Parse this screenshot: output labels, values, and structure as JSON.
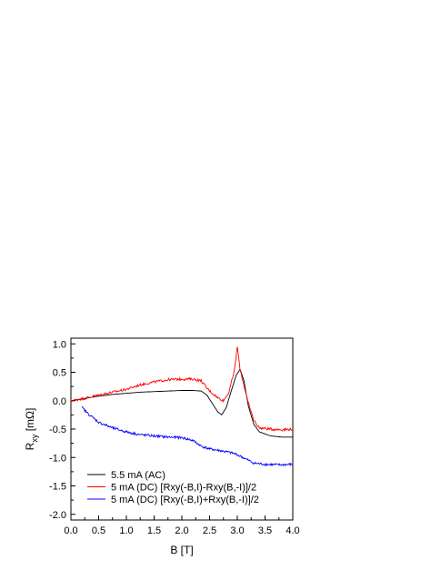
{
  "chart_data": {
    "type": "line",
    "title": "",
    "xlabel": "B [T]",
    "ylabel_main": "R",
    "ylabel_sub": "xy",
    "ylabel_unit": " [mΩ]",
    "xlim": [
      0.0,
      4.0
    ],
    "ylim": [
      -2.1,
      1.1
    ],
    "xticks": [
      "0.0",
      "0.5",
      "1.0",
      "1.5",
      "2.0",
      "2.5",
      "3.0",
      "3.5",
      "4.0"
    ],
    "xtick_values": [
      0.0,
      0.5,
      1.0,
      1.5,
      2.0,
      2.5,
      3.0,
      3.5,
      4.0
    ],
    "yticks": [
      "1.0",
      "0.5",
      "0.0",
      "-0.5",
      "-1.0",
      "-1.5",
      "-2.0"
    ],
    "ytick_values": [
      1.0,
      0.5,
      0.0,
      -0.5,
      -1.0,
      -1.5,
      -2.0
    ],
    "grid": false,
    "legend_position": "bottom-left",
    "series": [
      {
        "name": "5.5 mA (AC)",
        "color": "#000000",
        "x": [
          0.0,
          0.25,
          0.5,
          0.75,
          1.0,
          1.25,
          1.5,
          1.75,
          2.0,
          2.2,
          2.35,
          2.45,
          2.55,
          2.65,
          2.72,
          2.8,
          2.9,
          2.98,
          3.05,
          3.12,
          3.2,
          3.3,
          3.4,
          3.6,
          3.8,
          4.0
        ],
        "y": [
          0.0,
          0.04,
          0.08,
          0.11,
          0.13,
          0.15,
          0.16,
          0.17,
          0.18,
          0.18,
          0.17,
          0.1,
          -0.05,
          -0.2,
          -0.25,
          -0.12,
          0.2,
          0.45,
          0.55,
          0.35,
          -0.1,
          -0.42,
          -0.55,
          -0.62,
          -0.64,
          -0.64
        ]
      },
      {
        "name": "5 mA (DC) [Rxy(-B,I)-Rxy(B,-I)]/2",
        "color": "#ff0000",
        "x": [
          0.0,
          0.25,
          0.5,
          0.75,
          1.0,
          1.25,
          1.5,
          1.75,
          2.0,
          2.2,
          2.35,
          2.45,
          2.55,
          2.65,
          2.75,
          2.85,
          2.95,
          3.0,
          3.05,
          3.1,
          3.2,
          3.3,
          3.4,
          3.6,
          3.8,
          4.0
        ],
        "y": [
          0.0,
          0.04,
          0.1,
          0.15,
          0.2,
          0.28,
          0.33,
          0.37,
          0.38,
          0.38,
          0.35,
          0.22,
          0.13,
          0.05,
          0.0,
          0.15,
          0.55,
          0.95,
          0.55,
          0.35,
          -0.05,
          -0.35,
          -0.48,
          -0.5,
          -0.51,
          -0.5
        ]
      },
      {
        "name": "5 mA (DC) [Rxy(-B,I)+Rxy(B,-I)]/2",
        "color": "#0000ff",
        "x": [
          0.2,
          0.3,
          0.4,
          0.5,
          0.75,
          1.0,
          1.25,
          1.5,
          1.75,
          2.0,
          2.2,
          2.35,
          2.5,
          2.7,
          2.9,
          3.0,
          3.1,
          3.2,
          3.3,
          3.5,
          3.75,
          4.0
        ],
        "y": [
          -0.12,
          -0.22,
          -0.3,
          -0.38,
          -0.48,
          -0.55,
          -0.6,
          -0.62,
          -0.64,
          -0.65,
          -0.7,
          -0.8,
          -0.85,
          -0.88,
          -0.92,
          -0.95,
          -1.0,
          -1.05,
          -1.1,
          -1.12,
          -1.13,
          -1.12
        ]
      }
    ]
  }
}
